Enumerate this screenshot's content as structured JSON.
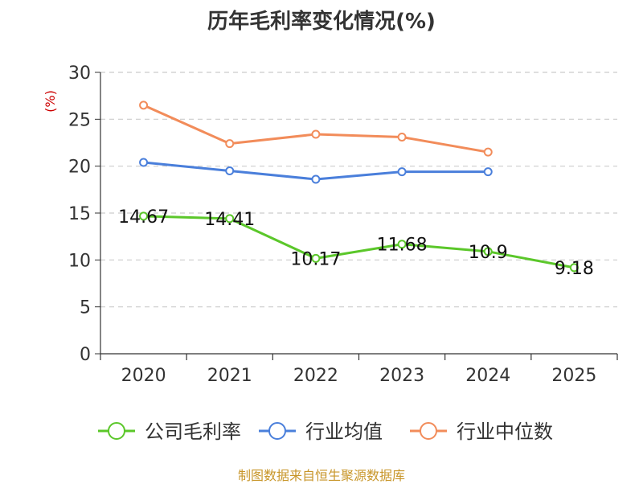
{
  "chart_data": {
    "type": "line",
    "title": "历年毛利率变化情况(%)",
    "ylabel": "(%)",
    "xlabel": "",
    "categories": [
      "2020",
      "2021",
      "2022",
      "2023",
      "2024",
      "2025"
    ],
    "ylim": [
      0,
      30
    ],
    "yticks": [
      0,
      5,
      10,
      15,
      20,
      25,
      30
    ],
    "grid": true,
    "legend_position": "bottom",
    "series": [
      {
        "name": "公司毛利率",
        "color": "#5bc72a",
        "values": [
          14.67,
          14.41,
          10.17,
          11.68,
          10.9,
          9.18
        ],
        "labels": [
          "14.67",
          "14.41",
          "10.17",
          "11.68",
          "10.9",
          "9.18"
        ]
      },
      {
        "name": "行业均值",
        "color": "#4a7fdb",
        "values": [
          20.4,
          19.5,
          18.6,
          19.4,
          19.4,
          null
        ]
      },
      {
        "name": "行业中位数",
        "color": "#f28c5a",
        "values": [
          26.5,
          22.4,
          23.4,
          23.1,
          21.5,
          null
        ]
      }
    ]
  },
  "source": "制图数据来自恒生聚源数据库"
}
